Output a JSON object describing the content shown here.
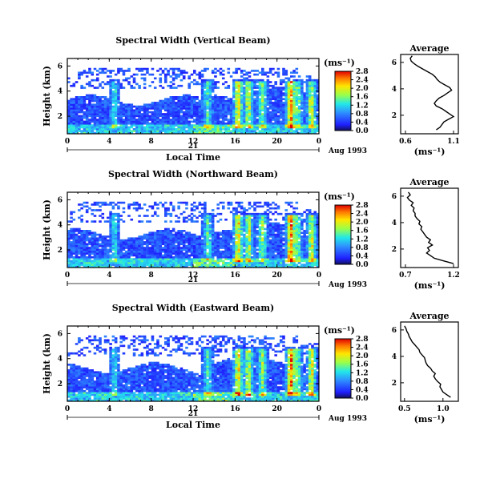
{
  "chart_data": [
    {
      "type": "heatmap",
      "title": "Spectral Width (Vertical Beam)",
      "ylabel": "Height (km)",
      "xlabel": "Local Time",
      "x_ticks": [
        "0",
        "4",
        "8",
        "12",
        "16",
        "20",
        "0"
      ],
      "y_ticks": [
        "2",
        "4",
        "6"
      ],
      "xlim": [
        0,
        24
      ],
      "ylim": [
        0.6,
        6.6
      ],
      "date_day": "21",
      "date_label": "Aug 1993",
      "colorbar": {
        "unit": "(ms⁻¹)",
        "range": [
          0,
          2.8
        ],
        "ticks": [
          "2.8",
          "2.4",
          "2.0",
          "1.6",
          "1.2",
          "0.8",
          "0.4",
          "0.0"
        ]
      },
      "average": {
        "title": "Average",
        "xlabel": "(ms⁻¹)",
        "x_ticks": [
          "0.6",
          "1.1"
        ],
        "xlim": [
          0.55,
          1.15
        ],
        "y_ticks": [
          "2",
          "4",
          "6"
        ],
        "profile": [
          [
            0.92,
            0.9
          ],
          [
            0.96,
            1.1
          ],
          [
            0.98,
            1.3
          ],
          [
            1.0,
            1.5
          ],
          [
            1.05,
            1.7
          ],
          [
            1.1,
            1.9
          ],
          [
            1.06,
            2.1
          ],
          [
            1.02,
            2.3
          ],
          [
            0.98,
            2.5
          ],
          [
            0.92,
            2.7
          ],
          [
            0.9,
            2.9
          ],
          [
            0.92,
            3.1
          ],
          [
            0.95,
            3.3
          ],
          [
            1.0,
            3.5
          ],
          [
            1.04,
            3.7
          ],
          [
            1.08,
            3.9
          ],
          [
            1.06,
            4.1
          ],
          [
            1.01,
            4.3
          ],
          [
            0.96,
            4.5
          ],
          [
            0.93,
            4.7
          ],
          [
            0.91,
            4.9
          ],
          [
            0.88,
            5.1
          ],
          [
            0.83,
            5.3
          ],
          [
            0.78,
            5.5
          ],
          [
            0.73,
            5.7
          ],
          [
            0.69,
            5.9
          ],
          [
            0.66,
            6.1
          ],
          [
            0.65,
            6.3
          ],
          [
            0.67,
            6.5
          ]
        ]
      }
    },
    {
      "type": "heatmap",
      "title": "Spectral Width (Northward Beam)",
      "ylabel": "Height (km)",
      "x_ticks": [
        "0",
        "4",
        "8",
        "12",
        "16",
        "20",
        "0"
      ],
      "y_ticks": [
        "2",
        "4",
        "6"
      ],
      "xlim": [
        0,
        24
      ],
      "ylim": [
        0.6,
        6.6
      ],
      "date_day": "21",
      "date_label": "Aug 1993",
      "colorbar": {
        "unit": "(ms⁻¹)",
        "range": [
          0,
          2.8
        ],
        "ticks": [
          "2.8",
          "2.4",
          "2.0",
          "1.6",
          "1.2",
          "0.8",
          "0.4",
          "0.0"
        ]
      },
      "average": {
        "title": "Average",
        "xlabel": "(ms⁻¹)",
        "x_ticks": [
          "0.7",
          "1.2"
        ],
        "xlim": [
          0.65,
          1.25
        ],
        "y_ticks": [
          "2",
          "4",
          "6"
        ],
        "profile": [
          [
            1.2,
            0.9
          ],
          [
            1.1,
            1.1
          ],
          [
            1.0,
            1.3
          ],
          [
            0.96,
            1.5
          ],
          [
            0.92,
            1.7
          ],
          [
            0.95,
            1.9
          ],
          [
            0.93,
            2.1
          ],
          [
            0.98,
            2.3
          ],
          [
            0.94,
            2.5
          ],
          [
            0.96,
            2.7
          ],
          [
            0.92,
            2.9
          ],
          [
            0.9,
            3.1
          ],
          [
            0.88,
            3.3
          ],
          [
            0.86,
            3.5
          ],
          [
            0.87,
            3.7
          ],
          [
            0.84,
            3.9
          ],
          [
            0.85,
            4.1
          ],
          [
            0.82,
            4.3
          ],
          [
            0.8,
            4.5
          ],
          [
            0.8,
            4.7
          ],
          [
            0.78,
            4.9
          ],
          [
            0.79,
            5.1
          ],
          [
            0.76,
            5.3
          ],
          [
            0.78,
            5.5
          ],
          [
            0.74,
            5.7
          ],
          [
            0.72,
            5.9
          ],
          [
            0.75,
            6.1
          ],
          [
            0.73,
            6.3
          ]
        ]
      }
    },
    {
      "type": "heatmap",
      "title": "Spectral Width (Eastward Beam)",
      "ylabel": "Height (km)",
      "xlabel": "Local Time",
      "x_ticks": [
        "0",
        "4",
        "8",
        "12",
        "16",
        "20",
        "0"
      ],
      "y_ticks": [
        "2",
        "4",
        "6"
      ],
      "xlim": [
        0,
        24
      ],
      "ylim": [
        0.6,
        6.6
      ],
      "date_day": "21",
      "date_label": "Aug 1993",
      "colorbar": {
        "unit": "(ms⁻¹)",
        "range": [
          0,
          2.8
        ],
        "ticks": [
          "2.8",
          "2.4",
          "2.0",
          "1.6",
          "1.2",
          "0.8",
          "0.4",
          "0.0"
        ]
      },
      "average": {
        "title": "Average",
        "xlabel": "(ms⁻¹)",
        "x_ticks": [
          "0.5",
          "1.0"
        ],
        "xlim": [
          0.45,
          1.2
        ],
        "y_ticks": [
          "2",
          "4",
          "6"
        ],
        "profile": [
          [
            1.1,
            0.9
          ],
          [
            1.05,
            1.1
          ],
          [
            1.0,
            1.3
          ],
          [
            0.98,
            1.5
          ],
          [
            0.96,
            1.7
          ],
          [
            0.97,
            1.9
          ],
          [
            0.93,
            2.1
          ],
          [
            0.9,
            2.3
          ],
          [
            0.88,
            2.5
          ],
          [
            0.9,
            2.7
          ],
          [
            0.86,
            2.9
          ],
          [
            0.84,
            3.1
          ],
          [
            0.8,
            3.3
          ],
          [
            0.78,
            3.5
          ],
          [
            0.77,
            3.7
          ],
          [
            0.76,
            3.9
          ],
          [
            0.73,
            4.1
          ],
          [
            0.7,
            4.3
          ],
          [
            0.69,
            4.5
          ],
          [
            0.66,
            4.7
          ],
          [
            0.63,
            4.9
          ],
          [
            0.6,
            5.1
          ],
          [
            0.58,
            5.3
          ],
          [
            0.56,
            5.5
          ],
          [
            0.55,
            5.7
          ],
          [
            0.53,
            5.9
          ],
          [
            0.52,
            6.1
          ],
          [
            0.5,
            6.3
          ]
        ]
      }
    }
  ]
}
